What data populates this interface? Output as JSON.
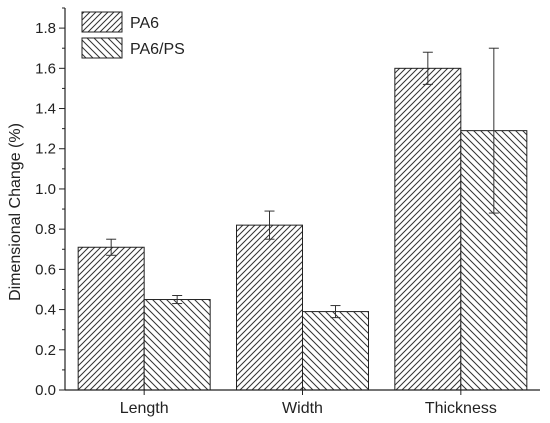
{
  "chart_data": {
    "type": "bar",
    "title": "",
    "xlabel": "",
    "ylabel": "Dimensional Change (%)",
    "ylim": [
      0.0,
      1.9
    ],
    "y_ticks": [
      "0.0",
      "0.2",
      "0.4",
      "0.6",
      "0.8",
      "1.0",
      "1.2",
      "1.4",
      "1.6",
      "1.8"
    ],
    "grid": false,
    "legend_position": "top-left",
    "categories": [
      "Length",
      "Width",
      "Thickness"
    ],
    "series": [
      {
        "name": "PA6",
        "values": [
          0.71,
          0.82,
          1.6
        ],
        "errors": [
          0.04,
          0.07,
          0.08
        ],
        "pattern": "diagonal-up"
      },
      {
        "name": "PA6/PS",
        "values": [
          0.45,
          0.39,
          1.29
        ],
        "errors": [
          0.02,
          0.03,
          0.41
        ],
        "pattern": "diagonal-down"
      }
    ]
  }
}
